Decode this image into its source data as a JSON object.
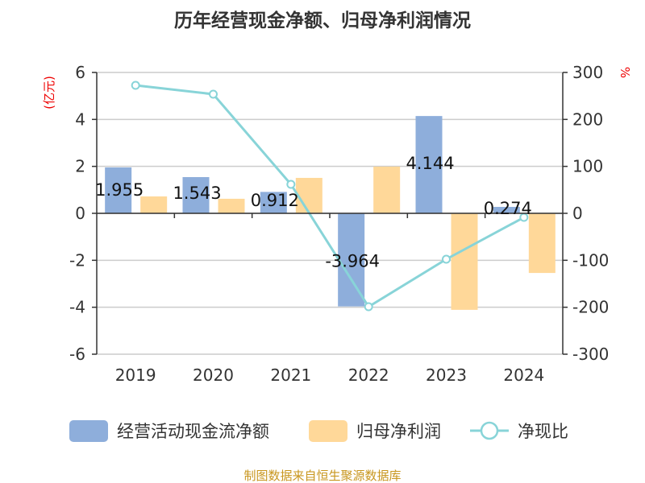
{
  "chart_data": {
    "type": "bar",
    "title": "历年经营现金净额、归母净利润情况",
    "categories": [
      "2019",
      "2020",
      "2021",
      "2022",
      "2023",
      "2024"
    ],
    "ylabel": "(亿元)",
    "y2label": "%",
    "ylim": [
      -6,
      6
    ],
    "yticks": [
      -6,
      -4,
      -2,
      0,
      2,
      4,
      6
    ],
    "y2lim": [
      -300,
      300
    ],
    "y2ticks": [
      -300,
      -200,
      -100,
      0,
      100,
      200,
      300
    ],
    "grid": true,
    "legend_position": "bottom",
    "series": [
      {
        "name": "经营活动现金流净额",
        "type": "bar",
        "axis": "left",
        "color": "#8eaedb",
        "values": [
          1.955,
          1.543,
          0.912,
          -3.964,
          4.144,
          0.274
        ],
        "labels": [
          "1.955",
          "1.543",
          "0.912",
          "-3.964",
          "4.144",
          "0.274"
        ]
      },
      {
        "name": "归母净利润",
        "type": "bar",
        "axis": "left",
        "color": "#ffd899",
        "values": [
          0.72,
          0.62,
          1.51,
          1.99,
          -4.11,
          -2.54
        ]
      },
      {
        "name": "净现比",
        "type": "line",
        "axis": "right",
        "color": "#88d4d8",
        "values": [
          272.6,
          253.7,
          61.7,
          -198.9,
          -97.7,
          -8.6
        ]
      }
    ],
    "source": "制图数据来自恒生聚源数据库"
  }
}
